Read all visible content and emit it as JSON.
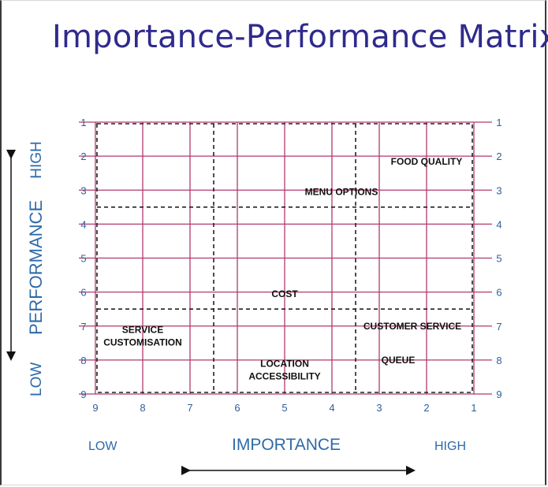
{
  "title": "Importance-Performance Matrix",
  "x_axis": {
    "label": "IMPORTANCE",
    "low": "LOW",
    "high": "HIGH",
    "ticks": [
      "9",
      "8",
      "7",
      "6",
      "5",
      "4",
      "3",
      "2",
      "1"
    ]
  },
  "y_axis": {
    "label": "PERFORMANCE",
    "low": "LOW",
    "high": "HIGH",
    "ticks": [
      "1",
      "2",
      "3",
      "4",
      "5",
      "6",
      "7",
      "8",
      "9"
    ]
  },
  "colors": {
    "grid": "#b03a6e",
    "title": "#2f2a8c",
    "axis_text": "#2e6aa8",
    "tick_text": "#2f5f99",
    "dashed": "#222222"
  },
  "dividers": {
    "importance": [
      6.5,
      3.5
    ],
    "performance": [
      3.5,
      6.5
    ]
  },
  "items": [
    {
      "lines": [
        "FOOD QUALITY"
      ],
      "importance": 2.0,
      "performance": 2.25
    },
    {
      "lines": [
        "MENU OPTIONS"
      ],
      "importance": 3.8,
      "performance": 3.15
    },
    {
      "lines": [
        "COST"
      ],
      "importance": 5.0,
      "performance": 6.15
    },
    {
      "lines": [
        "SERVICE",
        "CUSTOMISATION"
      ],
      "importance": 8.0,
      "performance": 7.2
    },
    {
      "lines": [
        "CUSTOMER SERVICE"
      ],
      "importance": 2.3,
      "performance": 7.1
    },
    {
      "lines": [
        "QUEUE"
      ],
      "importance": 2.6,
      "performance": 8.1
    },
    {
      "lines": [
        "LOCATION",
        "ACCESSIBILITY"
      ],
      "importance": 5.0,
      "performance": 8.2
    }
  ]
}
